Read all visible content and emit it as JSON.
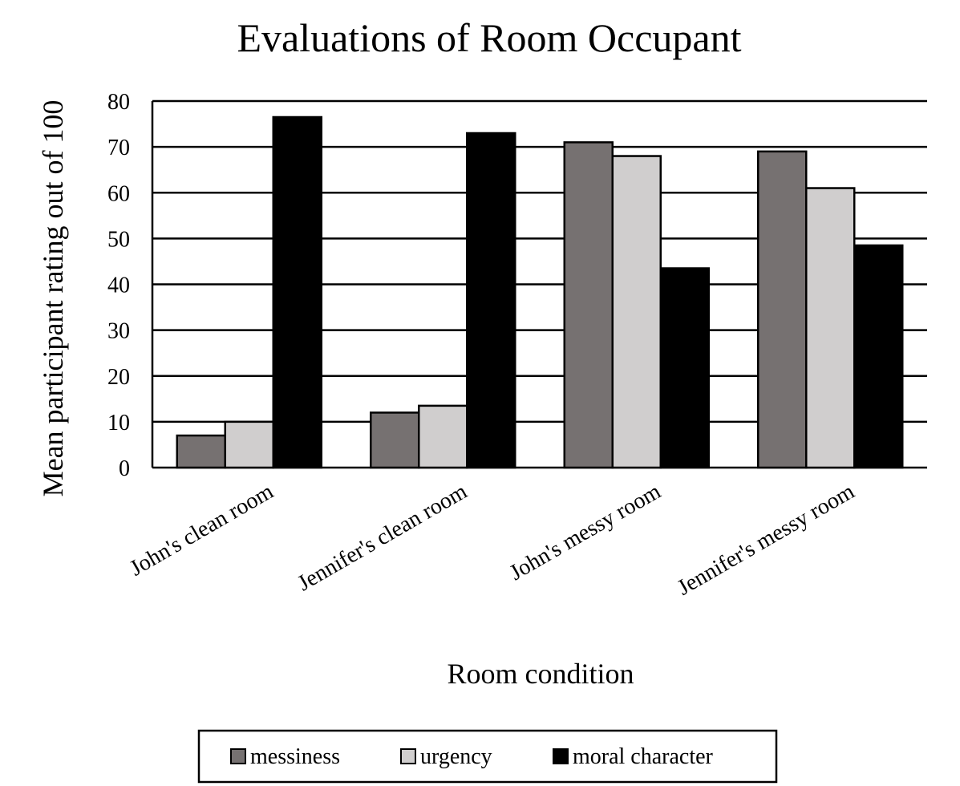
{
  "chart_data": {
    "type": "bar",
    "title": "Evaluations of Room Occupant",
    "xlabel": "Room condition",
    "ylabel": "Mean participant rating out of 100",
    "categories": [
      "John's clean room",
      "Jennifer's clean room",
      "John's messy room",
      "Jennifer's messy room"
    ],
    "series": [
      {
        "name": "messiness",
        "color": "#767171",
        "values": [
          7,
          12,
          71,
          69
        ]
      },
      {
        "name": "urgency",
        "color": "#d0cece",
        "values": [
          10,
          13.5,
          68,
          61
        ]
      },
      {
        "name": "moral character",
        "color": "#000000",
        "values": [
          76.5,
          73,
          43.5,
          48.5
        ]
      }
    ],
    "ylim": [
      0,
      80
    ],
    "yticks": [
      0,
      10,
      20,
      30,
      40,
      50,
      60,
      70,
      80
    ],
    "grid": true,
    "legend_position": "bottom"
  }
}
